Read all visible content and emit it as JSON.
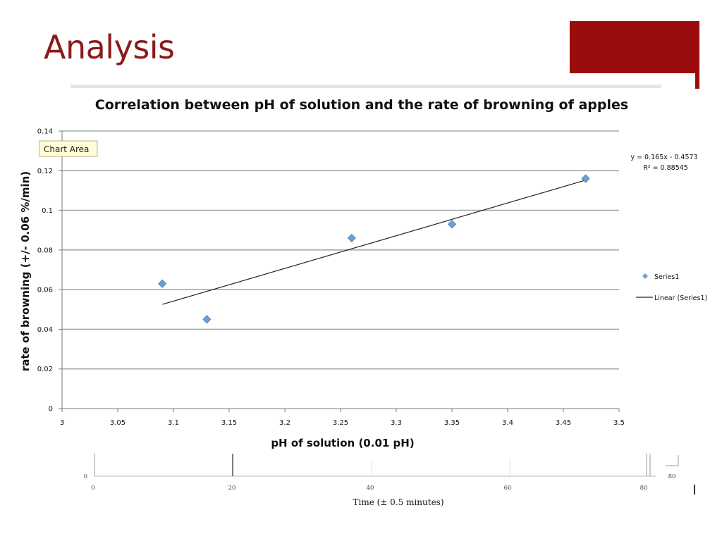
{
  "slide": {
    "title": "Analysis",
    "accent_color": "#9b0d0d",
    "title_color": "#8b1a1a"
  },
  "tooltip": "Chart Area",
  "chart_data": {
    "type": "scatter",
    "title": "Correlation between pH of solution and the rate of browning of apples",
    "xlabel": "pH of solution (0.01 pH)",
    "ylabel": "rate of browning (+/- 0.06 %/min)",
    "xlim": [
      3,
      3.5
    ],
    "ylim": [
      0,
      0.14
    ],
    "x_ticks": [
      "3",
      "3.05",
      "3.1",
      "3.15",
      "3.2",
      "3.25",
      "3.3",
      "3.35",
      "3.4",
      "3.45",
      "3.5"
    ],
    "y_ticks": [
      "0",
      "0.02",
      "0.04",
      "0.06",
      "0.08",
      "0.1",
      "0.12",
      "0.14"
    ],
    "grid": "horizontal",
    "series": [
      {
        "name": "Series1",
        "color": "#6f9fd8",
        "marker": "diamond",
        "points": [
          {
            "x": 3.09,
            "y": 0.063
          },
          {
            "x": 3.13,
            "y": 0.045
          },
          {
            "x": 3.26,
            "y": 0.086
          },
          {
            "x": 3.35,
            "y": 0.093
          },
          {
            "x": 3.47,
            "y": 0.116
          }
        ]
      }
    ],
    "trendline": {
      "name": "Linear (Series1)",
      "slope": 0.165,
      "intercept": -0.4573,
      "x_range": [
        3.09,
        3.47
      ],
      "equation": "y = 0.165x - 0.4573",
      "r_squared": "R² = 0.88545",
      "color": "#222222"
    },
    "legend": {
      "position": "right",
      "entries": [
        "Series1",
        "Linear (Series1)"
      ]
    }
  },
  "secondary_axis": {
    "xlabel": "Time (± 0.5 minutes)",
    "xlim": [
      0,
      80
    ],
    "x_ticks": [
      "0",
      "20",
      "40",
      "60",
      "80"
    ],
    "y_tick": "0",
    "side_label": "80"
  }
}
